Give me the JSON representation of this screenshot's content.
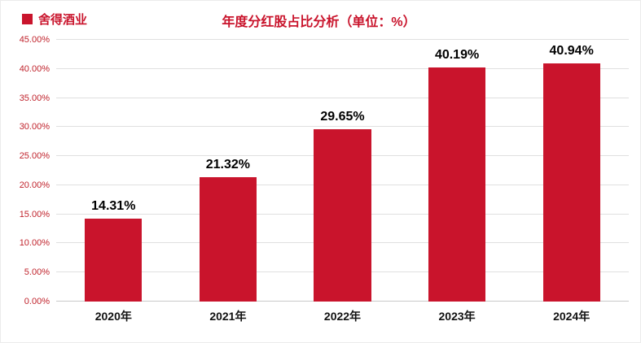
{
  "header": {
    "title": "年度分红股占比分析（单位：%）",
    "legend": {
      "label": "舍得酒业"
    }
  },
  "colors": {
    "accent": "#C9142C",
    "bar": "#C9142C",
    "title_text": "#C9142C",
    "axis_text": "#C0232C",
    "grid": "#E0E0E0",
    "category_text": "#111111",
    "value_label_text": "#000000"
  },
  "chart_data": {
    "type": "bar",
    "title": "年度分红股占比分析（单位：%）",
    "categories": [
      "2020年",
      "2021年",
      "2022年",
      "2023年",
      "2024年"
    ],
    "values": [
      14.31,
      21.32,
      29.65,
      40.19,
      40.94
    ],
    "value_labels": [
      "14.31%",
      "21.32%",
      "29.65%",
      "40.19%",
      "40.94%"
    ],
    "series_name": "舍得酒业",
    "xlabel": "",
    "ylabel": "",
    "ylim": [
      0,
      45
    ],
    "ytick_step": 5,
    "yticks": [
      "0.00%",
      "5.00%",
      "10.00%",
      "15.00%",
      "20.00%",
      "25.00%",
      "30.00%",
      "35.00%",
      "40.00%",
      "45.00%"
    ],
    "grid": true,
    "legend_position": "top-left",
    "bar_color": "#C9142C"
  }
}
